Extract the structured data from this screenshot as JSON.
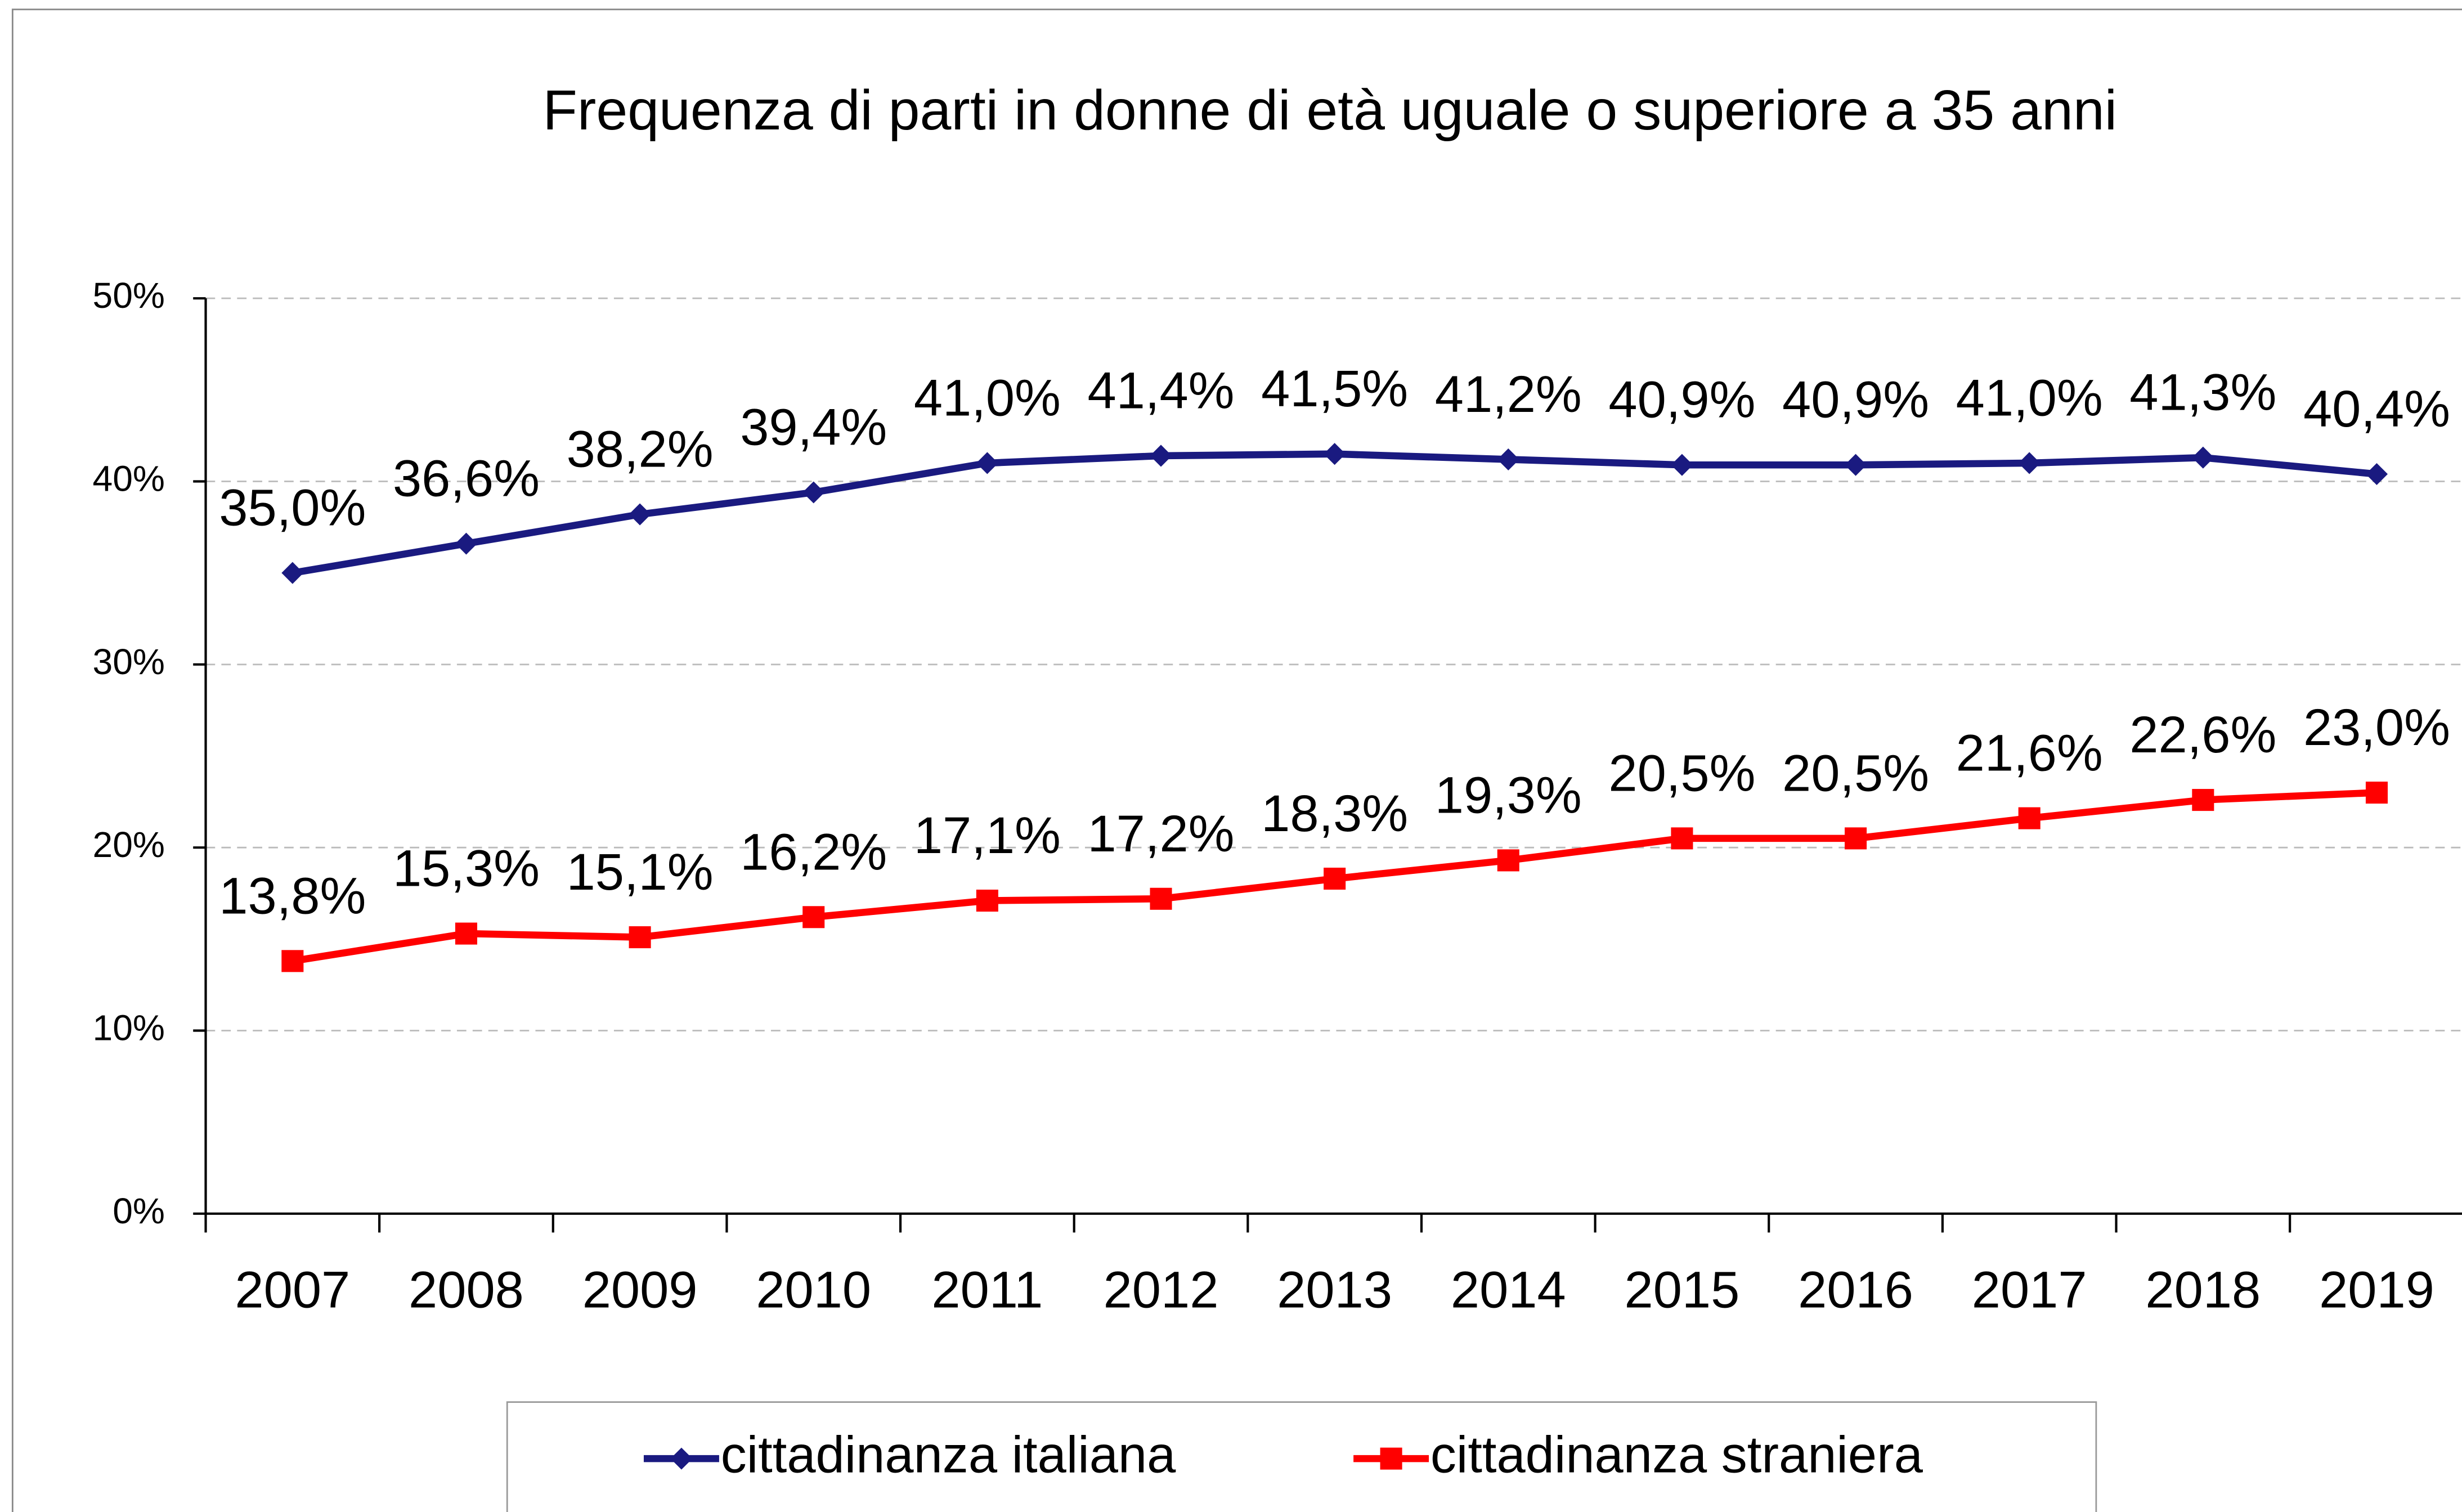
{
  "chart_data": {
    "type": "line",
    "title": "Frequenza di parti in donne di età uguale o superiore a 35 anni",
    "categories": [
      "2007",
      "2008",
      "2009",
      "2010",
      "2011",
      "2012",
      "2013",
      "2014",
      "2015",
      "2016",
      "2017",
      "2018",
      "2019"
    ],
    "series": [
      {
        "name": "cittadinanza italiana",
        "color": "#1a1a80",
        "marker": "diamond",
        "values": [
          35.0,
          36.6,
          38.2,
          39.4,
          41.0,
          41.4,
          41.5,
          41.2,
          40.9,
          40.9,
          41.0,
          41.3,
          40.4
        ],
        "value_labels": [
          "35,0%",
          "36,6%",
          "38,2%",
          "39,4%",
          "41,0%",
          "41,4%",
          "41,5%",
          "41,2%",
          "40,9%",
          "40,9%",
          "41,0%",
          "41,3%",
          "40,4%"
        ]
      },
      {
        "name": "cittadinanza straniera",
        "color": "#ff0000",
        "marker": "square",
        "values": [
          13.8,
          15.3,
          15.1,
          16.2,
          17.1,
          17.2,
          18.3,
          19.3,
          20.5,
          20.5,
          21.6,
          22.6,
          23.0
        ],
        "value_labels": [
          "13,8%",
          "15,3%",
          "15,1%",
          "16,2%",
          "17,1%",
          "17,2%",
          "18,3%",
          "19,3%",
          "20,5%",
          "20,5%",
          "21,6%",
          "22,6%",
          "23,0%"
        ]
      }
    ],
    "ylim": [
      0,
      50
    ],
    "yticks": [
      {
        "value": 0,
        "label": "0%"
      },
      {
        "value": 10,
        "label": "10%"
      },
      {
        "value": 20,
        "label": "20%"
      },
      {
        "value": 30,
        "label": "30%"
      },
      {
        "value": 40,
        "label": "40%"
      },
      {
        "value": 50,
        "label": "50%"
      }
    ],
    "grid": true,
    "legend": "bottom"
  }
}
